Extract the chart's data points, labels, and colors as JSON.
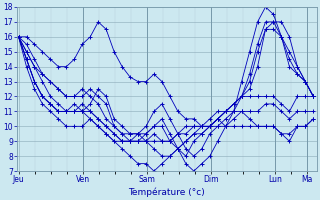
{
  "title": "Température (°c)",
  "background_color": "#cce8f0",
  "plot_bg_color": "#cce8f0",
  "grid_color_minor": "#b8cfd8",
  "grid_color_major": "#8aaab8",
  "line_color": "#0000bb",
  "ylim": [
    7,
    18
  ],
  "yticks": [
    7,
    8,
    9,
    10,
    11,
    12,
    13,
    14,
    15,
    16,
    17,
    18
  ],
  "day_x": [
    0,
    1,
    2,
    3,
    4,
    4.5
  ],
  "day_labels": [
    "Jeu",
    "Ven",
    "Sam",
    "Dim",
    "Lun",
    "Ma"
  ],
  "n_per_day": 8,
  "series": [
    [
      16,
      16,
      15.5,
      15,
      14.5,
      14,
      14,
      14.5,
      15.5,
      16,
      17,
      16.5,
      15,
      14,
      13.3,
      13,
      13,
      13.5,
      13,
      12,
      11,
      10.5,
      10.5,
      10,
      10,
      10.5,
      11,
      11.5,
      12,
      12,
      12,
      12,
      12,
      11.5,
      11,
      12,
      12,
      12
    ],
    [
      16,
      15.5,
      14.5,
      13.5,
      13,
      12.5,
      12,
      12,
      12,
      12.5,
      12,
      11.5,
      10,
      9.5,
      9,
      9,
      9.5,
      10,
      10,
      9,
      8.5,
      8,
      9,
      9.5,
      10,
      10.5,
      10,
      10.5,
      11,
      10.5,
      10,
      10,
      10,
      9.5,
      9,
      10,
      10,
      10.5
    ],
    [
      16,
      15,
      14,
      13,
      12,
      11.5,
      11,
      11,
      11,
      11.5,
      12.5,
      12,
      10.5,
      10,
      9.5,
      9.5,
      9,
      8.5,
      8,
      8,
      8.5,
      9,
      9.5,
      9.5,
      10,
      10,
      10,
      10,
      10,
      10,
      10,
      10,
      10,
      9.5,
      9.5,
      10,
      10,
      10.5
    ],
    [
      16,
      15,
      14,
      13.5,
      13,
      12.5,
      12,
      12,
      12.5,
      12,
      11.5,
      10.5,
      10,
      9.5,
      9.5,
      9.5,
      9.5,
      10,
      10.5,
      9.5,
      8.5,
      7.5,
      7,
      7.5,
      8,
      9,
      10,
      11,
      13,
      15,
      17,
      18,
      17.5,
      16,
      15,
      14,
      13,
      12
    ],
    [
      16,
      14.5,
      13,
      12,
      11.5,
      11,
      11,
      11,
      11.5,
      11,
      10.5,
      10,
      9.5,
      9,
      9,
      9.5,
      10,
      11,
      11.5,
      10.5,
      9.5,
      8.5,
      8,
      8.5,
      9.5,
      10,
      10.5,
      11,
      12,
      13.5,
      15.5,
      17,
      17,
      16,
      14,
      13.5,
      13,
      12
    ],
    [
      16,
      14.5,
      13,
      12,
      11.5,
      11,
      11,
      11.5,
      11,
      11,
      10.5,
      10,
      9.5,
      9,
      9,
      9,
      9,
      9.5,
      9,
      9,
      9.5,
      9.5,
      10,
      10,
      10,
      10.5,
      11,
      11.5,
      12,
      13,
      15,
      16.5,
      16.5,
      16,
      14.5,
      13.5,
      13,
      12
    ],
    [
      16,
      14.5,
      13,
      12,
      11.5,
      11,
      11,
      11,
      11,
      10.5,
      10,
      9.5,
      9,
      9,
      9,
      9,
      9,
      9,
      9,
      9,
      9.5,
      10,
      10,
      10,
      10.5,
      11,
      11,
      11.5,
      12,
      12.5,
      14,
      16.5,
      17,
      17,
      16,
      14,
      13,
      12
    ],
    [
      16,
      14,
      12.5,
      11.5,
      11,
      10.5,
      10,
      10,
      10,
      10.5,
      10,
      9.5,
      9,
      8.5,
      8,
      7.5,
      7.5,
      7,
      7.5,
      8,
      8.5,
      9,
      9.5,
      10,
      10,
      10.5,
      11,
      11,
      11,
      11,
      11,
      11.5,
      11.5,
      11,
      10.5,
      11,
      11,
      11
    ]
  ]
}
